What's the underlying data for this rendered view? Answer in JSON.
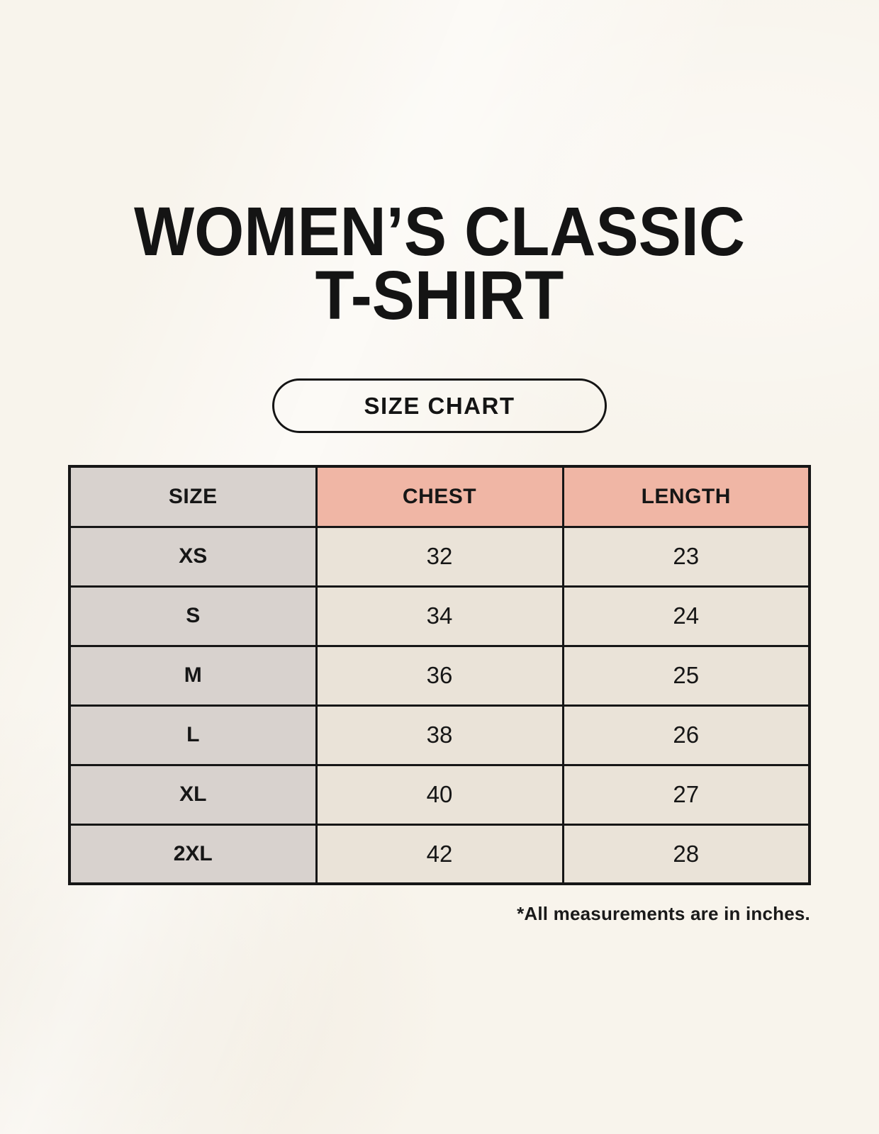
{
  "page": {
    "title_line1": "WOMEN’S CLASSIC",
    "title_line2": "T-SHIRT",
    "badge_label": "SIZE CHART",
    "footnote": "*All measurements are in inches."
  },
  "colors": {
    "background": "#f8f4ec",
    "header_accent": "#f0b6a5",
    "size_column_gray": "#d8d2ce",
    "cell_cream": "#eae3d8",
    "border": "#161616",
    "text": "#141414"
  },
  "chart_data": {
    "type": "table",
    "title": "WOMEN’S CLASSIC T-SHIRT",
    "subtitle": "SIZE CHART",
    "columns": [
      "SIZE",
      "CHEST",
      "LENGTH"
    ],
    "units_note": "*All measurements are in inches.",
    "rows": [
      {
        "size": "XS",
        "chest": 32,
        "length": 23
      },
      {
        "size": "S",
        "chest": 34,
        "length": 24
      },
      {
        "size": "M",
        "chest": 36,
        "length": 25
      },
      {
        "size": "L",
        "chest": 38,
        "length": 26
      },
      {
        "size": "XL",
        "chest": 40,
        "length": 27
      },
      {
        "size": "2XL",
        "chest": 42,
        "length": 28
      }
    ]
  }
}
